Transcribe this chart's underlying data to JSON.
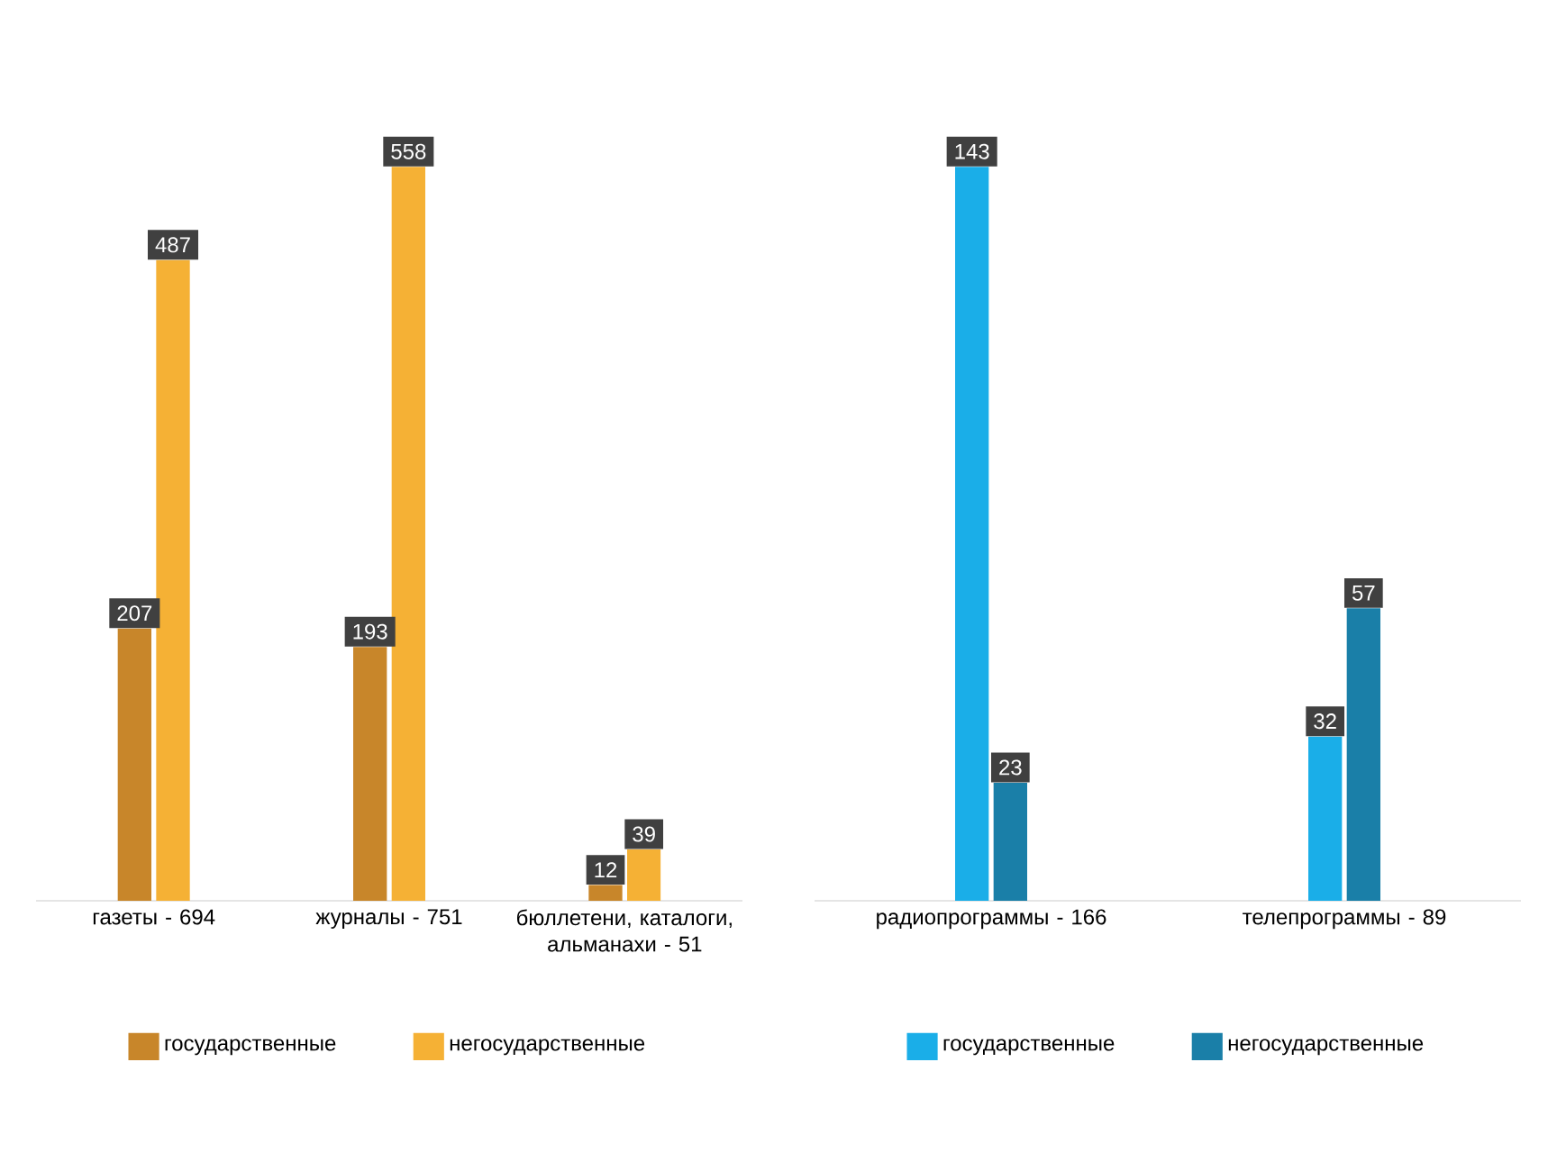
{
  "chart_data": [
    {
      "type": "bar",
      "categories": [
        "газеты - 694",
        "журналы - 751",
        "бюллетени, каталоги, альманахи - 51"
      ],
      "data_labels": true,
      "legend": "bottom",
      "series": [
        {
          "name": "государственные",
          "color": "#c8862a",
          "values": [
            207,
            193,
            12
          ]
        },
        {
          "name": "негосударственные",
          "color": "#f5b135",
          "values": [
            487,
            558,
            39
          ]
        }
      ]
    },
    {
      "type": "bar",
      "categories": [
        "радиопрограммы - 166",
        "телепрограммы - 89"
      ],
      "data_labels": true,
      "legend": "bottom",
      "series": [
        {
          "name": "государственные",
          "color": "#1aaee8",
          "values": [
            143,
            32
          ]
        },
        {
          "name": "негосударственные",
          "color": "#1a7fa8",
          "values": [
            23,
            57
          ]
        }
      ]
    }
  ]
}
